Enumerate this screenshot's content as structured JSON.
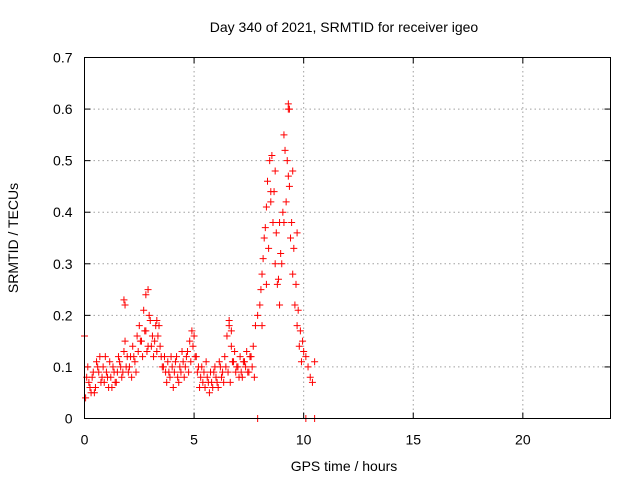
{
  "chart_data": {
    "type": "scatter",
    "title": "Day 340 of 2021, SRMTID for receiver igeo",
    "xlabel": "GPS time / hours",
    "ylabel": "SRMTID / TECUs",
    "xlim": [
      0,
      24
    ],
    "ylim": [
      0,
      0.7
    ],
    "grid": true,
    "marker": "+",
    "color": "#ff0000",
    "xticks": [
      0,
      5,
      10,
      15,
      20
    ],
    "xtick_labels": [
      "0",
      "5",
      "10",
      "15",
      "20"
    ],
    "yticks": [
      0,
      0.1,
      0.2,
      0.3,
      0.4,
      0.5,
      0.6,
      0.7
    ],
    "ytick_labels": [
      "0",
      "0.1",
      "0.2",
      "0.3",
      "0.4",
      "0.5",
      "0.6",
      "0.7"
    ],
    "series": [
      {
        "name": "SRMTID",
        "x": [
          0.0,
          0.1,
          0.2,
          0.3,
          0.4,
          0.5,
          0.6,
          0.7,
          0.8,
          0.9,
          1.0,
          1.1,
          1.2,
          1.3,
          1.4,
          1.5,
          1.6,
          1.7,
          1.8,
          1.9,
          2.0,
          2.1,
          2.2,
          2.3,
          2.4,
          2.5,
          2.6,
          2.7,
          2.8,
          2.9,
          3.0,
          3.1,
          3.2,
          3.3,
          3.4,
          3.5,
          3.6,
          3.7,
          3.8,
          3.9,
          4.0,
          4.1,
          4.2,
          4.3,
          4.4,
          4.5,
          4.6,
          4.7,
          4.8,
          4.9,
          5.0,
          5.1,
          5.2,
          5.3,
          5.4,
          5.5,
          5.6,
          5.7,
          5.8,
          5.9,
          6.0,
          6.1,
          6.2,
          6.3,
          6.4,
          6.5,
          6.6,
          6.7,
          6.8,
          6.9,
          7.0,
          7.1,
          7.2,
          7.3,
          7.4,
          7.5,
          7.6,
          7.7,
          7.8,
          7.9,
          8.0,
          8.1,
          8.2,
          8.3,
          8.4,
          8.5,
          8.6,
          8.7,
          8.8,
          8.9,
          9.0,
          9.1,
          9.2,
          9.3,
          9.4,
          9.5,
          9.6,
          9.7,
          9.8,
          9.9,
          10.0,
          10.1,
          10.2,
          10.3,
          10.4,
          10.5,
          0.05,
          0.15,
          0.25,
          0.35,
          0.45,
          0.55,
          0.65,
          0.75,
          0.85,
          0.95,
          1.05,
          1.15,
          1.25,
          1.35,
          1.45,
          1.55,
          1.65,
          1.75,
          1.85,
          1.95,
          2.05,
          2.15,
          2.25,
          2.35,
          2.45,
          2.55,
          2.65,
          2.75,
          2.85,
          2.95,
          3.05,
          3.15,
          3.25,
          3.35,
          3.45,
          3.55,
          3.65,
          3.75,
          3.85,
          3.95,
          4.05,
          4.15,
          4.25,
          4.35,
          4.45,
          4.55,
          4.65,
          4.75,
          4.85,
          4.95,
          5.05,
          5.15,
          5.25,
          5.35,
          5.45,
          5.55,
          5.65,
          5.75,
          5.85,
          5.95,
          6.05,
          6.15,
          6.25,
          6.35,
          6.45,
          6.55,
          6.65,
          6.75,
          6.85,
          6.95,
          7.05,
          7.15,
          7.25,
          7.35,
          7.45,
          7.55,
          7.65,
          7.75,
          8.05,
          8.15,
          8.25,
          8.35,
          8.45,
          8.55,
          8.65,
          8.75,
          8.85,
          8.95,
          9.05,
          9.15,
          9.25,
          9.35,
          9.45,
          9.55,
          9.65,
          9.75,
          9.85,
          9.95,
          8.1,
          8.3,
          8.5,
          8.7,
          8.9,
          9.1,
          9.3,
          9.5,
          9.7,
          1.8,
          1.85,
          2.8,
          2.9,
          3.3,
          6.6,
          6.7,
          9.3,
          9.35,
          7.9,
          10.1,
          10.5
        ],
        "y": [
          0.16,
          0.08,
          0.07,
          0.05,
          0.09,
          0.06,
          0.1,
          0.12,
          0.08,
          0.07,
          0.09,
          0.06,
          0.08,
          0.1,
          0.07,
          0.09,
          0.11,
          0.08,
          0.13,
          0.1,
          0.09,
          0.12,
          0.14,
          0.11,
          0.16,
          0.18,
          0.15,
          0.21,
          0.17,
          0.14,
          0.19,
          0.16,
          0.15,
          0.13,
          0.18,
          0.12,
          0.1,
          0.09,
          0.11,
          0.08,
          0.1,
          0.09,
          0.12,
          0.07,
          0.09,
          0.11,
          0.1,
          0.13,
          0.15,
          0.17,
          0.16,
          0.12,
          0.1,
          0.08,
          0.07,
          0.06,
          0.08,
          0.05,
          0.07,
          0.09,
          0.08,
          0.06,
          0.1,
          0.09,
          0.12,
          0.16,
          0.18,
          0.14,
          0.11,
          0.09,
          0.1,
          0.12,
          0.08,
          0.11,
          0.13,
          0.09,
          0.12,
          0.14,
          0.18,
          0.2,
          0.22,
          0.28,
          0.35,
          0.41,
          0.33,
          0.44,
          0.38,
          0.3,
          0.26,
          0.22,
          0.3,
          0.38,
          0.42,
          0.47,
          0.35,
          0.28,
          0.22,
          0.18,
          0.14,
          0.11,
          0.13,
          0.12,
          0.1,
          0.08,
          0.07,
          0.11,
          0.04,
          0.1,
          0.06,
          0.08,
          0.05,
          0.11,
          0.09,
          0.07,
          0.1,
          0.12,
          0.08,
          0.11,
          0.06,
          0.09,
          0.07,
          0.12,
          0.1,
          0.09,
          0.15,
          0.12,
          0.1,
          0.08,
          0.12,
          0.09,
          0.13,
          0.15,
          0.12,
          0.17,
          0.13,
          0.2,
          0.14,
          0.12,
          0.18,
          0.16,
          0.14,
          0.1,
          0.12,
          0.07,
          0.09,
          0.12,
          0.06,
          0.11,
          0.08,
          0.1,
          0.13,
          0.08,
          0.12,
          0.09,
          0.11,
          0.14,
          0.12,
          0.09,
          0.06,
          0.1,
          0.09,
          0.11,
          0.07,
          0.09,
          0.06,
          0.1,
          0.07,
          0.11,
          0.08,
          0.07,
          0.1,
          0.09,
          0.07,
          0.11,
          0.13,
          0.1,
          0.08,
          0.09,
          0.11,
          0.1,
          0.09,
          0.12,
          0.1,
          0.08,
          0.25,
          0.31,
          0.37,
          0.46,
          0.5,
          0.51,
          0.44,
          0.36,
          0.27,
          0.32,
          0.4,
          0.52,
          0.5,
          0.45,
          0.38,
          0.33,
          0.26,
          0.21,
          0.17,
          0.15,
          0.18,
          0.26,
          0.42,
          0.48,
          0.38,
          0.55,
          0.6,
          0.48,
          0.36,
          0.23,
          0.22,
          0.24,
          0.25,
          0.19,
          0.19,
          0.17,
          0.61,
          0.6,
          0.0,
          0.0,
          0.0
        ]
      }
    ]
  }
}
